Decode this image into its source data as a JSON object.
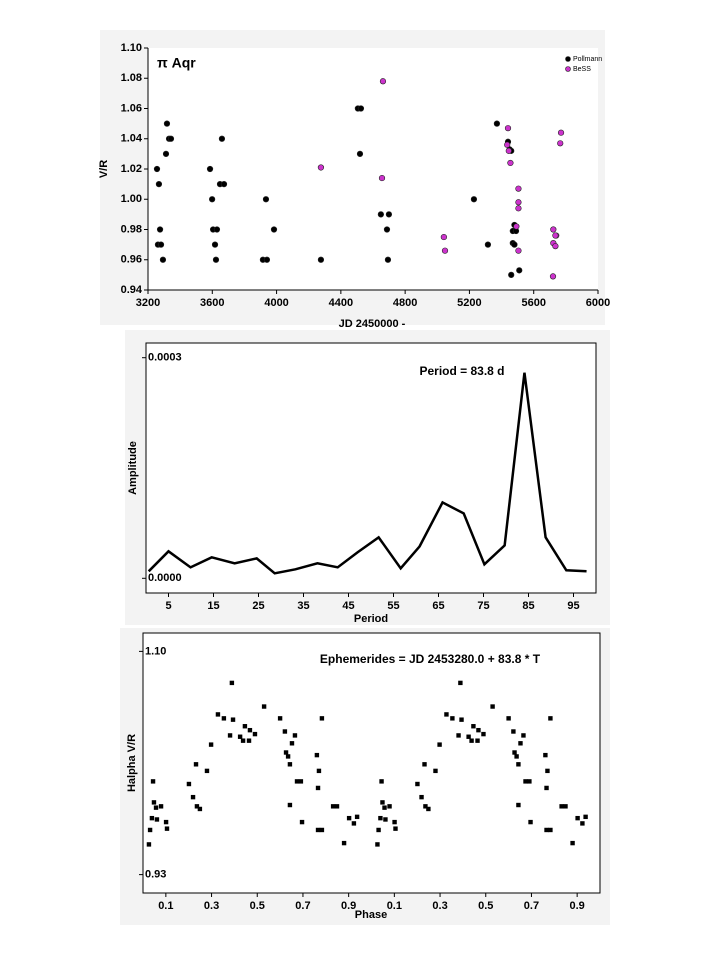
{
  "chart_data": [
    {
      "type": "scatter",
      "title": "π Aqr",
      "xlabel": "JD 2450000 -",
      "ylabel": "V/R",
      "xlim": [
        3200,
        6000
      ],
      "xticks": [
        3200,
        3600,
        4000,
        4400,
        4800,
        5200,
        5600,
        6000
      ],
      "ylim": [
        0.94,
        1.1
      ],
      "yticks": [
        0.94,
        0.96,
        0.98,
        {
          "value": 1.0,
          "label": "1.00"
        },
        1.02,
        1.04,
        1.06,
        1.08,
        {
          "value": 1.1,
          "label": "1.10"
        }
      ],
      "legend": "upper right",
      "series": [
        {
          "name": "Pollmann",
          "color": "#000000",
          "x": [
            3256,
            3268,
            3275,
            3262,
            3281,
            3293,
            3312,
            3318,
            3331,
            3343,
            3586,
            3599,
            3605,
            3617,
            3629,
            3623,
            3648,
            3673,
            3660,
            3915,
            3940,
            3934,
            3984,
            4276,
            4506,
            4525,
            4519,
            4649,
            4699,
            4687,
            4693,
            5228,
            5315,
            5371,
            5440,
            5450,
            5460,
            5480,
            5470,
            5490,
            5470,
            5480,
            5460,
            5510
          ],
          "values": [
            1.02,
            1.01,
            0.98,
            0.97,
            0.97,
            0.96,
            1.03,
            1.05,
            1.04,
            1.04,
            1.02,
            1.0,
            0.98,
            0.97,
            0.98,
            0.96,
            1.01,
            1.01,
            1.04,
            0.96,
            0.96,
            1.0,
            0.98,
            0.96,
            1.06,
            1.06,
            1.03,
            0.99,
            0.99,
            0.98,
            0.96,
            1.0,
            0.97,
            1.05,
            1.038,
            1.033,
            1.032,
            0.983,
            0.979,
            0.979,
            0.971,
            0.97,
            0.95,
            0.953
          ]
        },
        {
          "name": "BeSS",
          "color": "#cc33cc",
          "x": [
            4276,
            4662,
            4656,
            5041,
            5048,
            5440,
            5435,
            5445,
            5455,
            5505,
            5505,
            5505,
            5492,
            5505,
            5722,
            5740,
            5722,
            5735,
            5735,
            5720,
            5770,
            5765
          ],
          "values": [
            1.021,
            1.078,
            1.014,
            0.975,
            0.966,
            1.047,
            1.036,
            1.032,
            1.024,
            1.007,
            0.998,
            0.994,
            0.982,
            0.966,
            0.98,
            0.976,
            0.971,
            0.969,
            0.976,
            0.949,
            1.044,
            1.037
          ]
        }
      ]
    },
    {
      "type": "line",
      "xlabel": "Period",
      "ylabel": "Amplitude",
      "annotation": "Period = 83.8 d",
      "xlim": [
        0,
        100
      ],
      "xticks": [
        5,
        15,
        25,
        35,
        45,
        55,
        65,
        75,
        85,
        95
      ],
      "ylim": [
        -2e-05,
        0.00032
      ],
      "yticks": [
        {
          "value": 0,
          "label": "0.0000"
        },
        {
          "value": 0.0003,
          "label": "0.0003"
        }
      ],
      "color": "#000000",
      "x": [
        0.6,
        5,
        9.9,
        14.6,
        19.7,
        24.6,
        28.6,
        33.2,
        38.1,
        42.6,
        47,
        51.7,
        56.6,
        60.8,
        65.9,
        70.6,
        75.2,
        79.7,
        84.1,
        88.8,
        93.4,
        97.9
      ],
      "values": [
        9.5e-06,
        3.67e-05,
        1.49e-05,
        2.85e-05,
        2.04e-05,
        2.71e-05,
        6.8e-06,
        1.22e-05,
        2.04e-05,
        1.49e-05,
        3.53e-05,
        5.57e-05,
        1.36e-05,
        4.34e-05,
        0.0001032,
        8.82e-05,
        1.9e-05,
        4.48e-05,
        0.0002796,
        5.57e-05,
        1.09e-05,
        9.5e-06
      ]
    },
    {
      "type": "scatter",
      "xlabel": "Phase",
      "ylabel": "Halpha V/R",
      "annotation": "Ephemerides = JD 2453280.0 + 83.8 * T",
      "xlim": [
        0,
        2
      ],
      "xticks": [
        0.1,
        0.3,
        0.5,
        0.7,
        0.9,
        {
          "value": 1.1,
          "label": "0.1"
        },
        {
          "value": 1.3,
          "label": "0.3"
        },
        {
          "value": 1.5,
          "label": "0.5"
        },
        {
          "value": 1.7,
          "label": "0.7"
        },
        {
          "value": 1.9,
          "label": "0.9"
        }
      ],
      "ylim": [
        0.916,
        1.114
      ],
      "yticks": [
        0.93,
        {
          "value": 1.1,
          "label": "1.10"
        }
      ],
      "color": "#000000",
      "x": [
        0.026,
        0.031,
        0.039,
        0.044,
        0.048,
        0.057,
        0.061,
        0.079,
        0.101,
        0.105,
        0.201,
        0.219,
        0.232,
        0.236,
        0.249,
        0.28,
        0.298,
        0.328,
        0.354,
        0.389,
        0.381,
        0.394,
        0.425,
        0.438,
        0.446,
        0.464,
        0.468,
        0.49,
        0.53,
        0.6,
        0.621,
        0.626,
        0.635,
        0.643,
        0.652,
        0.643,
        0.674,
        0.691,
        0.665,
        0.696,
        0.761,
        0.77,
        0.766,
        0.766,
        0.783,
        0.783,
        0.832,
        0.849,
        0.88,
        0.902,
        0.923,
        0.937,
        1.026,
        1.031,
        1.039,
        1.044,
        1.048,
        1.057,
        1.061,
        1.079,
        1.101,
        1.105,
        1.201,
        1.219,
        1.232,
        1.236,
        1.249,
        1.28,
        1.298,
        1.328,
        1.354,
        1.389,
        1.381,
        1.394,
        1.425,
        1.438,
        1.446,
        1.464,
        1.468,
        1.49,
        1.53,
        1.6,
        1.621,
        1.626,
        1.635,
        1.643,
        1.652,
        1.643,
        1.674,
        1.691,
        1.665,
        1.696,
        1.761,
        1.77,
        1.766,
        1.766,
        1.783,
        1.783,
        1.832,
        1.849,
        1.88,
        1.902,
        1.923,
        1.937
      ],
      "values": [
        0.953,
        0.964,
        0.973,
        1.001,
        0.985,
        0.981,
        0.972,
        0.982,
        0.97,
        0.965,
        0.999,
        0.989,
        1.014,
        0.982,
        0.98,
        1.009,
        1.029,
        1.052,
        1.049,
        1.076,
        1.036,
        1.048,
        1.035,
        1.032,
        1.043,
        1.032,
        1.04,
        1.037,
        1.058,
        1.049,
        1.039,
        1.023,
        1.02,
        0.983,
        1.03,
        1.014,
        1.001,
        1.001,
        1.036,
        0.97,
        1.021,
        1.009,
        0.996,
        0.964,
        1.049,
        0.964,
        0.982,
        0.982,
        0.954,
        0.973,
        0.969,
        0.974,
        0.953,
        0.964,
        0.973,
        1.001,
        0.985,
        0.981,
        0.972,
        0.982,
        0.97,
        0.965,
        0.999,
        0.989,
        1.014,
        0.982,
        0.98,
        1.009,
        1.029,
        1.052,
        1.049,
        1.076,
        1.036,
        1.048,
        1.035,
        1.032,
        1.043,
        1.032,
        1.04,
        1.037,
        1.058,
        1.049,
        1.039,
        1.023,
        1.02,
        0.983,
        1.03,
        1.014,
        1.001,
        1.001,
        1.036,
        0.97,
        1.021,
        1.009,
        0.996,
        0.964,
        1.049,
        0.964,
        0.982,
        0.982,
        0.954,
        0.973,
        0.969,
        0.974
      ]
    }
  ]
}
